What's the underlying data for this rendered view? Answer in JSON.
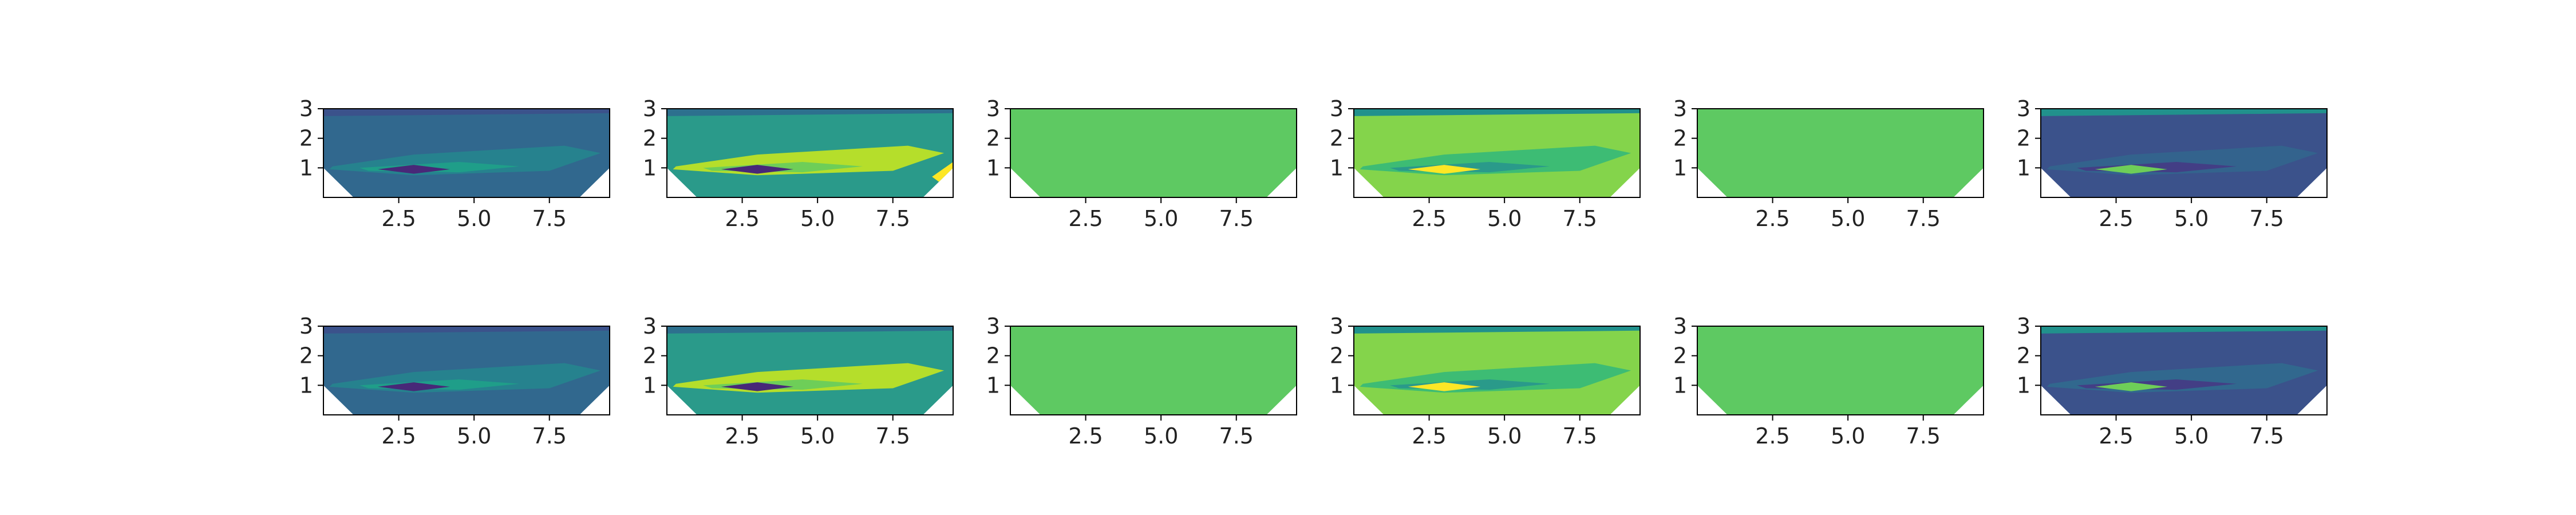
{
  "chart_data": [
    {
      "type": "contour",
      "xticks": [
        "2.5",
        "5.0",
        "7.5"
      ],
      "yticks": [
        "1",
        "2",
        "3"
      ],
      "xlim": [
        0,
        9.5
      ],
      "ylim": [
        0,
        3
      ],
      "fill": "flat",
      "base_color": "#31688e",
      "features": [
        {
          "color": "#26828e",
          "intensity": 1
        },
        {
          "color": "#1f9e89",
          "intensity": 1
        },
        {
          "color": "#3b528b",
          "intensity": 1
        },
        {
          "color": "#482878",
          "intensity": 1
        }
      ]
    },
    {
      "type": "contour",
      "xticks": [
        "2.5",
        "5.0",
        "7.5"
      ],
      "yticks": [
        "1",
        "2",
        "3"
      ],
      "xlim": [
        0,
        9.5
      ],
      "ylim": [
        0,
        3
      ],
      "fill": "flat",
      "base_color": "#2a9a8a",
      "features": [
        {
          "color": "#b5de2b",
          "intensity": 1
        },
        {
          "color": "#6ece58",
          "intensity": 1
        },
        {
          "color": "#2d708e",
          "intensity": 1
        },
        {
          "color": "#482878",
          "intensity": 1
        },
        {
          "color": "#fde725",
          "intensity": 1
        }
      ]
    },
    {
      "type": "contour",
      "xticks": [
        "2.5",
        "5.0",
        "7.5"
      ],
      "yticks": [
        "1",
        "2",
        "3"
      ],
      "xlim": [
        0,
        9.5
      ],
      "ylim": [
        0,
        3
      ],
      "fill": "uniform",
      "base_color": "#5ec962",
      "features": []
    },
    {
      "type": "contour",
      "xticks": [
        "2.5",
        "5.0",
        "7.5"
      ],
      "yticks": [
        "1",
        "2",
        "3"
      ],
      "xlim": [
        0,
        9.5
      ],
      "ylim": [
        0,
        3
      ],
      "fill": "flat",
      "base_color": "#84d44b",
      "features": [
        {
          "color": "#3dbc74",
          "intensity": 1
        },
        {
          "color": "#2a9a8a",
          "intensity": 1
        },
        {
          "color": "#21918c",
          "intensity": 1
        },
        {
          "color": "#fde725",
          "intensity": 1
        }
      ]
    },
    {
      "type": "contour",
      "xticks": [
        "2.5",
        "5.0",
        "7.5"
      ],
      "yticks": [
        "1",
        "2",
        "3"
      ],
      "xlim": [
        0,
        9.5
      ],
      "ylim": [
        0,
        3
      ],
      "fill": "uniform",
      "base_color": "#5ec962",
      "features": []
    },
    {
      "type": "contour",
      "xticks": [
        "2.5",
        "5.0",
        "7.5"
      ],
      "yticks": [
        "1",
        "2",
        "3"
      ],
      "xlim": [
        0,
        9.5
      ],
      "ylim": [
        0,
        3
      ],
      "fill": "flat",
      "base_color": "#3b528b",
      "features": [
        {
          "color": "#33638d",
          "intensity": 1
        },
        {
          "color": "#433e85",
          "intensity": 1
        },
        {
          "color": "#21918c",
          "intensity": 1
        },
        {
          "color": "#6ece58",
          "intensity": 1
        }
      ]
    },
    {
      "type": "contour",
      "xticks": [
        "2.5",
        "5.0",
        "7.5"
      ],
      "yticks": [
        "1",
        "2",
        "3"
      ],
      "xlim": [
        0,
        9.5
      ],
      "ylim": [
        0,
        3
      ],
      "fill": "flat",
      "base_color": "#31688e",
      "features": [
        {
          "color": "#26828e",
          "intensity": 1
        },
        {
          "color": "#1f9e89",
          "intensity": 1
        },
        {
          "color": "#3b528b",
          "intensity": 1
        },
        {
          "color": "#482878",
          "intensity": 1
        }
      ]
    },
    {
      "type": "contour",
      "xticks": [
        "2.5",
        "5.0",
        "7.5"
      ],
      "yticks": [
        "1",
        "2",
        "3"
      ],
      "xlim": [
        0,
        9.5
      ],
      "ylim": [
        0,
        3
      ],
      "fill": "flat",
      "base_color": "#2a9a8a",
      "features": [
        {
          "color": "#b5de2b",
          "intensity": 1
        },
        {
          "color": "#6ece58",
          "intensity": 1
        },
        {
          "color": "#2d708e",
          "intensity": 1
        },
        {
          "color": "#482878",
          "intensity": 1
        }
      ]
    },
    {
      "type": "contour",
      "xticks": [
        "2.5",
        "5.0",
        "7.5"
      ],
      "yticks": [
        "1",
        "2",
        "3"
      ],
      "xlim": [
        0,
        9.5
      ],
      "ylim": [
        0,
        3
      ],
      "fill": "uniform",
      "base_color": "#5ec962",
      "features": []
    },
    {
      "type": "contour",
      "xticks": [
        "2.5",
        "5.0",
        "7.5"
      ],
      "yticks": [
        "1",
        "2",
        "3"
      ],
      "xlim": [
        0,
        9.5
      ],
      "ylim": [
        0,
        3
      ],
      "fill": "flat",
      "base_color": "#84d44b",
      "features": [
        {
          "color": "#3dbc74",
          "intensity": 1
        },
        {
          "color": "#2a9a8a",
          "intensity": 1
        },
        {
          "color": "#21918c",
          "intensity": 1
        },
        {
          "color": "#fde725",
          "intensity": 1
        }
      ]
    },
    {
      "type": "contour",
      "xticks": [
        "2.5",
        "5.0",
        "7.5"
      ],
      "yticks": [
        "1",
        "2",
        "3"
      ],
      "xlim": [
        0,
        9.5
      ],
      "ylim": [
        0,
        3
      ],
      "fill": "uniform",
      "base_color": "#5ec962",
      "features": []
    },
    {
      "type": "contour",
      "xticks": [
        "2.5",
        "5.0",
        "7.5"
      ],
      "yticks": [
        "1",
        "2",
        "3"
      ],
      "xlim": [
        0,
        9.5
      ],
      "ylim": [
        0,
        3
      ],
      "fill": "flat",
      "base_color": "#3b528b",
      "features": [
        {
          "color": "#31688e",
          "intensity": 1
        },
        {
          "color": "#433e85",
          "intensity": 1
        },
        {
          "color": "#21918c",
          "intensity": 1
        },
        {
          "color": "#6ece58",
          "intensity": 1
        }
      ]
    }
  ]
}
